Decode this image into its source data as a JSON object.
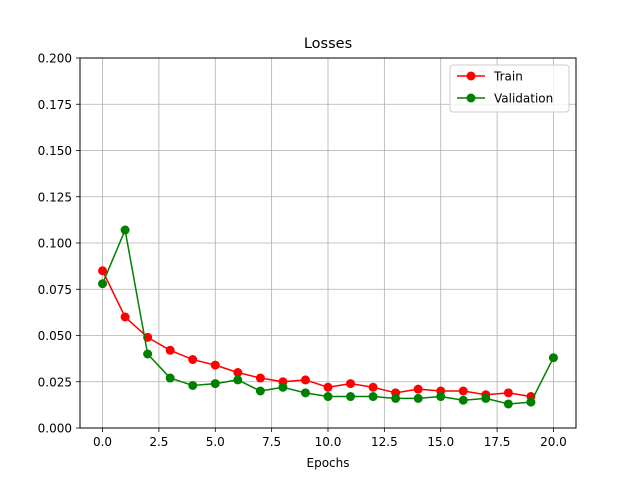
{
  "chart_data": {
    "type": "line",
    "title": "Losses",
    "xlabel": "Epochs",
    "ylabel": "",
    "xlim": [
      -1,
      21
    ],
    "ylim": [
      0,
      0.2
    ],
    "x_ticks": [
      0.0,
      2.5,
      5.0,
      7.5,
      10.0,
      12.5,
      15.0,
      17.5,
      20.0
    ],
    "x_tick_labels": [
      "0.0",
      "2.5",
      "5.0",
      "7.5",
      "10.0",
      "12.5",
      "15.0",
      "17.5",
      "20.0"
    ],
    "y_ticks": [
      0.0,
      0.025,
      0.05,
      0.075,
      0.1,
      0.125,
      0.15,
      0.175,
      0.2
    ],
    "y_tick_labels": [
      "0.000",
      "0.025",
      "0.050",
      "0.075",
      "0.100",
      "0.125",
      "0.150",
      "0.175",
      "0.200"
    ],
    "grid": true,
    "legend_position": "top-right",
    "series": [
      {
        "name": "Train",
        "color": "#ff0000",
        "x": [
          0,
          1,
          2,
          3,
          4,
          5,
          6,
          7,
          8,
          9,
          10,
          11,
          12,
          13,
          14,
          15,
          16,
          17,
          18,
          19
        ],
        "values": [
          0.085,
          0.06,
          0.049,
          0.042,
          0.037,
          0.034,
          0.03,
          0.027,
          0.025,
          0.026,
          0.022,
          0.024,
          0.022,
          0.019,
          0.021,
          0.02,
          0.02,
          0.018,
          0.019,
          0.017
        ]
      },
      {
        "name": "Validation",
        "color": "#008000",
        "x": [
          0,
          1,
          2,
          3,
          4,
          5,
          6,
          7,
          8,
          9,
          10,
          11,
          12,
          13,
          14,
          15,
          16,
          17,
          18,
          19,
          20
        ],
        "values": [
          0.078,
          0.107,
          0.04,
          0.027,
          0.023,
          0.024,
          0.026,
          0.02,
          0.022,
          0.019,
          0.017,
          0.017,
          0.017,
          0.016,
          0.016,
          0.017,
          0.015,
          0.016,
          0.013,
          0.014,
          0.038
        ]
      }
    ]
  }
}
